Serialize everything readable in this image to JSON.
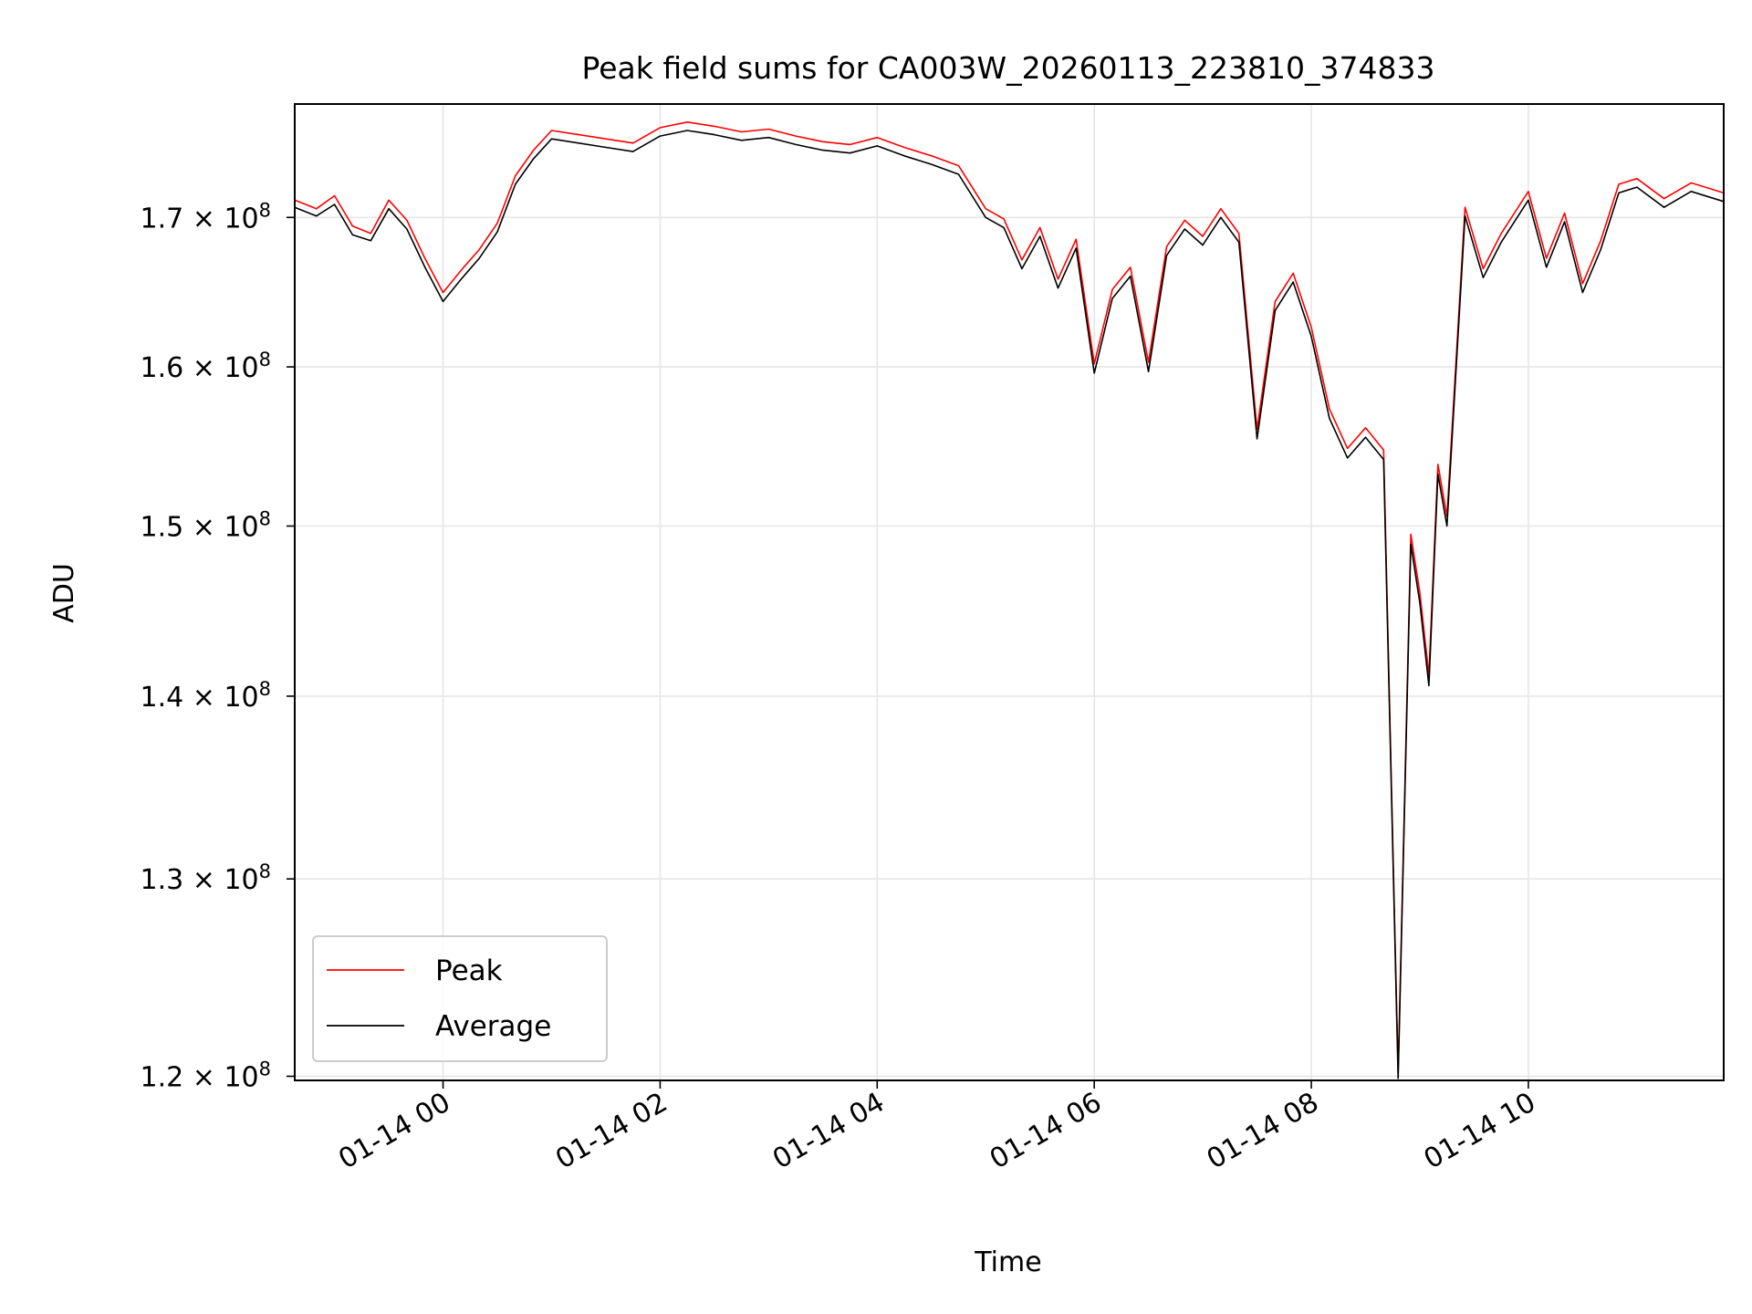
{
  "chart_data": {
    "type": "line",
    "title": "Peak field sums for CA003W_20260113_223810_374833",
    "xlabel": "Time",
    "ylabel": "ADU",
    "y_scale": "log",
    "x_range": [
      "2026-01-13T22:38",
      "2026-01-14T11:48"
    ],
    "ylim": [
      119800000,
      178000000
    ],
    "x_ticks": [
      {
        "label": "01-14 00",
        "time": "2026-01-14T00:00"
      },
      {
        "label": "01-14 02",
        "time": "2026-01-14T02:00"
      },
      {
        "label": "01-14 04",
        "time": "2026-01-14T04:00"
      },
      {
        "label": "01-14 06",
        "time": "2026-01-14T06:00"
      },
      {
        "label": "01-14 08",
        "time": "2026-01-14T08:00"
      },
      {
        "label": "01-14 10",
        "time": "2026-01-14T10:00"
      }
    ],
    "y_ticks": [
      {
        "mantissa": "1.2",
        "exponent": "8",
        "value": 120000000
      },
      {
        "mantissa": "1.3",
        "exponent": "8",
        "value": 130000000
      },
      {
        "mantissa": "1.4",
        "exponent": "8",
        "value": 140000000
      },
      {
        "mantissa": "1.5",
        "exponent": "8",
        "value": 150000000
      },
      {
        "mantissa": "1.6",
        "exponent": "8",
        "value": 160000000
      },
      {
        "mantissa": "1.7",
        "exponent": "8",
        "value": 170000000
      }
    ],
    "grid": true,
    "legend_position": "lower-left",
    "series": [
      {
        "name": "Peak",
        "color": "#ff0000",
        "points": [
          [
            "2026-01-13T22:38",
            171200000
          ],
          [
            "2026-01-13T22:50",
            170600000
          ],
          [
            "2026-01-13T23:00",
            171500000
          ],
          [
            "2026-01-13T23:10",
            169400000
          ],
          [
            "2026-01-13T23:20",
            168900000
          ],
          [
            "2026-01-13T23:30",
            171200000
          ],
          [
            "2026-01-13T23:40",
            169800000
          ],
          [
            "2026-01-13T23:50",
            167200000
          ],
          [
            "2026-01-14T00:00",
            164900000
          ],
          [
            "2026-01-14T00:10",
            166400000
          ],
          [
            "2026-01-14T00:20",
            167800000
          ],
          [
            "2026-01-14T00:30",
            169600000
          ],
          [
            "2026-01-14T00:40",
            172900000
          ],
          [
            "2026-01-14T00:50",
            174700000
          ],
          [
            "2026-01-14T01:00",
            176100000
          ],
          [
            "2026-01-14T01:15",
            175800000
          ],
          [
            "2026-01-14T01:30",
            175500000
          ],
          [
            "2026-01-14T01:45",
            175200000
          ],
          [
            "2026-01-14T02:00",
            176300000
          ],
          [
            "2026-01-14T02:15",
            176700000
          ],
          [
            "2026-01-14T02:30",
            176400000
          ],
          [
            "2026-01-14T02:45",
            176000000
          ],
          [
            "2026-01-14T03:00",
            176200000
          ],
          [
            "2026-01-14T03:15",
            175700000
          ],
          [
            "2026-01-14T03:30",
            175300000
          ],
          [
            "2026-01-14T03:45",
            175100000
          ],
          [
            "2026-01-14T04:00",
            175600000
          ],
          [
            "2026-01-14T04:15",
            174900000
          ],
          [
            "2026-01-14T04:30",
            174300000
          ],
          [
            "2026-01-14T04:45",
            173600000
          ],
          [
            "2026-01-14T05:00",
            170600000
          ],
          [
            "2026-01-14T05:10",
            169900000
          ],
          [
            "2026-01-14T05:20",
            167100000
          ],
          [
            "2026-01-14T05:30",
            169300000
          ],
          [
            "2026-01-14T05:40",
            165800000
          ],
          [
            "2026-01-14T05:50",
            168500000
          ],
          [
            "2026-01-14T06:00",
            160200000
          ],
          [
            "2026-01-14T06:10",
            165100000
          ],
          [
            "2026-01-14T06:20",
            166600000
          ],
          [
            "2026-01-14T06:30",
            160300000
          ],
          [
            "2026-01-14T06:40",
            168000000
          ],
          [
            "2026-01-14T06:50",
            169800000
          ],
          [
            "2026-01-14T07:00",
            168700000
          ],
          [
            "2026-01-14T07:10",
            170600000
          ],
          [
            "2026-01-14T07:20",
            168900000
          ],
          [
            "2026-01-14T07:30",
            156000000
          ],
          [
            "2026-01-14T07:40",
            164300000
          ],
          [
            "2026-01-14T07:50",
            166200000
          ],
          [
            "2026-01-14T08:00",
            162600000
          ],
          [
            "2026-01-14T08:10",
            157300000
          ],
          [
            "2026-01-14T08:20",
            154800000
          ],
          [
            "2026-01-14T08:30",
            156100000
          ],
          [
            "2026-01-14T08:40",
            154700000
          ],
          [
            "2026-01-14T08:48",
            120200000
          ],
          [
            "2026-01-14T08:55",
            149500000
          ],
          [
            "2026-01-14T09:00",
            146000000
          ],
          [
            "2026-01-14T09:05",
            141200000
          ],
          [
            "2026-01-14T09:10",
            153800000
          ],
          [
            "2026-01-14T09:15",
            150600000
          ],
          [
            "2026-01-14T09:25",
            170700000
          ],
          [
            "2026-01-14T09:35",
            166500000
          ],
          [
            "2026-01-14T09:45",
            168900000
          ],
          [
            "2026-01-14T10:00",
            171800000
          ],
          [
            "2026-01-14T10:10",
            167200000
          ],
          [
            "2026-01-14T10:20",
            170300000
          ],
          [
            "2026-01-14T10:30",
            165500000
          ],
          [
            "2026-01-14T10:40",
            168400000
          ],
          [
            "2026-01-14T10:50",
            172300000
          ],
          [
            "2026-01-14T11:00",
            172700000
          ],
          [
            "2026-01-14T11:15",
            171300000
          ],
          [
            "2026-01-14T11:30",
            172400000
          ],
          [
            "2026-01-14T11:48",
            171700000
          ]
        ]
      },
      {
        "name": "Average",
        "color": "#000000",
        "points": [
          [
            "2026-01-13T22:38",
            170700000
          ],
          [
            "2026-01-13T22:50",
            170100000
          ],
          [
            "2026-01-13T23:00",
            170900000
          ],
          [
            "2026-01-13T23:10",
            168800000
          ],
          [
            "2026-01-13T23:20",
            168400000
          ],
          [
            "2026-01-13T23:30",
            170600000
          ],
          [
            "2026-01-13T23:40",
            169200000
          ],
          [
            "2026-01-13T23:50",
            166600000
          ],
          [
            "2026-01-14T00:00",
            164300000
          ],
          [
            "2026-01-14T00:10",
            165800000
          ],
          [
            "2026-01-14T00:20",
            167200000
          ],
          [
            "2026-01-14T00:30",
            169000000
          ],
          [
            "2026-01-14T00:40",
            172300000
          ],
          [
            "2026-01-14T00:50",
            174100000
          ],
          [
            "2026-01-14T01:00",
            175500000
          ],
          [
            "2026-01-14T01:15",
            175200000
          ],
          [
            "2026-01-14T01:30",
            174900000
          ],
          [
            "2026-01-14T01:45",
            174600000
          ],
          [
            "2026-01-14T02:00",
            175700000
          ],
          [
            "2026-01-14T02:15",
            176100000
          ],
          [
            "2026-01-14T02:30",
            175800000
          ],
          [
            "2026-01-14T02:45",
            175400000
          ],
          [
            "2026-01-14T03:00",
            175600000
          ],
          [
            "2026-01-14T03:15",
            175100000
          ],
          [
            "2026-01-14T03:30",
            174700000
          ],
          [
            "2026-01-14T03:45",
            174500000
          ],
          [
            "2026-01-14T04:00",
            175000000
          ],
          [
            "2026-01-14T04:15",
            174300000
          ],
          [
            "2026-01-14T04:30",
            173700000
          ],
          [
            "2026-01-14T04:45",
            173000000
          ],
          [
            "2026-01-14T05:00",
            170000000
          ],
          [
            "2026-01-14T05:10",
            169300000
          ],
          [
            "2026-01-14T05:20",
            166500000
          ],
          [
            "2026-01-14T05:30",
            168700000
          ],
          [
            "2026-01-14T05:40",
            165200000
          ],
          [
            "2026-01-14T05:50",
            167900000
          ],
          [
            "2026-01-14T06:00",
            159600000
          ],
          [
            "2026-01-14T06:10",
            164500000
          ],
          [
            "2026-01-14T06:20",
            166000000
          ],
          [
            "2026-01-14T06:30",
            159700000
          ],
          [
            "2026-01-14T06:40",
            167400000
          ],
          [
            "2026-01-14T06:50",
            169200000
          ],
          [
            "2026-01-14T07:00",
            168100000
          ],
          [
            "2026-01-14T07:10",
            170000000
          ],
          [
            "2026-01-14T07:20",
            168300000
          ],
          [
            "2026-01-14T07:30",
            155400000
          ],
          [
            "2026-01-14T07:40",
            163700000
          ],
          [
            "2026-01-14T07:50",
            165600000
          ],
          [
            "2026-01-14T08:00",
            162000000
          ],
          [
            "2026-01-14T08:10",
            156700000
          ],
          [
            "2026-01-14T08:20",
            154200000
          ],
          [
            "2026-01-14T08:30",
            155500000
          ],
          [
            "2026-01-14T08:40",
            154100000
          ],
          [
            "2026-01-14T08:48",
            119900000
          ],
          [
            "2026-01-14T08:55",
            148900000
          ],
          [
            "2026-01-14T09:00",
            145400000
          ],
          [
            "2026-01-14T09:05",
            140600000
          ],
          [
            "2026-01-14T09:10",
            153200000
          ],
          [
            "2026-01-14T09:15",
            150000000
          ],
          [
            "2026-01-14T09:25",
            170100000
          ],
          [
            "2026-01-14T09:35",
            165900000
          ],
          [
            "2026-01-14T09:45",
            168300000
          ],
          [
            "2026-01-14T10:00",
            171200000
          ],
          [
            "2026-01-14T10:10",
            166600000
          ],
          [
            "2026-01-14T10:20",
            169700000
          ],
          [
            "2026-01-14T10:30",
            164900000
          ],
          [
            "2026-01-14T10:40",
            167800000
          ],
          [
            "2026-01-14T10:50",
            171700000
          ],
          [
            "2026-01-14T11:00",
            172100000
          ],
          [
            "2026-01-14T11:15",
            170700000
          ],
          [
            "2026-01-14T11:30",
            171800000
          ],
          [
            "2026-01-14T11:48",
            171100000
          ]
        ]
      }
    ],
    "legend": [
      {
        "label": "Peak",
        "color": "#ff0000"
      },
      {
        "label": "Average",
        "color": "#000000"
      }
    ],
    "colors": {
      "grid": "#e6e6e6",
      "axes": "#000000",
      "legend_border": "#cccccc",
      "background": "#ffffff"
    }
  }
}
